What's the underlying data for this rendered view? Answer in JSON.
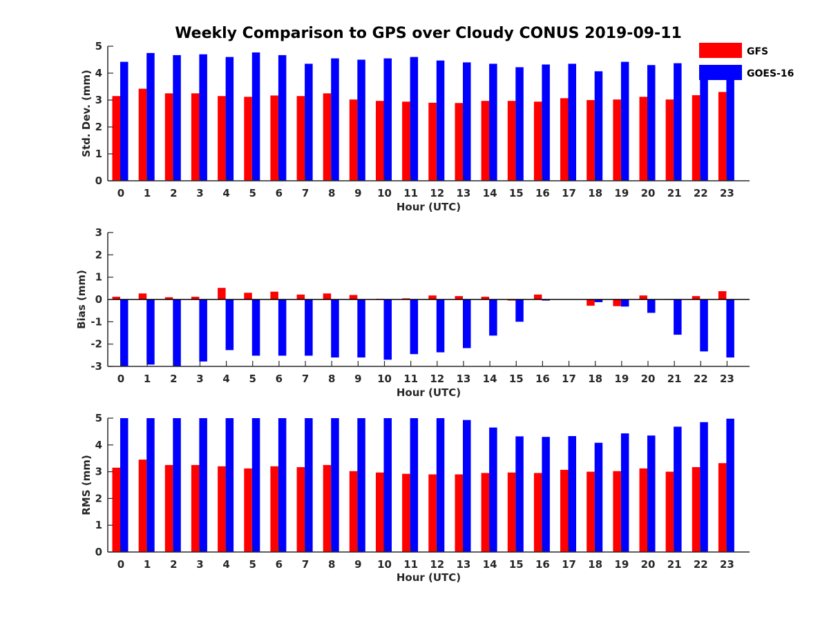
{
  "chart_data": {
    "title": "Weekly Comparison to GPS over Cloudy CONUS 2019-09-11",
    "type": "bar",
    "legend": {
      "placement": "top-right",
      "entries": [
        {
          "name": "GFS",
          "color": "#ff0000"
        },
        {
          "name": "GOES-16",
          "color": "#0000ff"
        }
      ]
    },
    "categories": [
      "0",
      "1",
      "2",
      "3",
      "4",
      "5",
      "6",
      "7",
      "8",
      "9",
      "10",
      "11",
      "12",
      "13",
      "14",
      "15",
      "16",
      "17",
      "18",
      "19",
      "20",
      "21",
      "22",
      "23"
    ],
    "panels": [
      {
        "xlabel": "Hour (UTC)",
        "ylabel": "Std. Dev. (mm)",
        "ylim": [
          0,
          5
        ],
        "yticks": [
          "0",
          "1",
          "2",
          "3",
          "4",
          "5"
        ],
        "series": [
          {
            "name": "GFS",
            "color": "#ff0000",
            "values": [
              3.15,
              3.42,
              3.25,
              3.25,
              3.15,
              3.12,
              3.17,
              3.15,
              3.25,
              3.02,
              2.97,
              2.94,
              2.9,
              2.89,
              2.97,
              2.97,
              2.94,
              3.07,
              3.0,
              3.02,
              3.12,
              3.02,
              3.18,
              3.3
            ]
          },
          {
            "name": "GOES-16",
            "color": "#0000ff",
            "values": [
              4.42,
              4.75,
              4.67,
              4.7,
              4.6,
              4.77,
              4.67,
              4.35,
              4.55,
              4.5,
              4.55,
              4.6,
              4.47,
              4.4,
              4.35,
              4.22,
              4.32,
              4.35,
              4.07,
              4.42,
              4.3,
              4.37,
              4.2,
              4.1
            ]
          }
        ]
      },
      {
        "xlabel": "Hour (UTC)",
        "ylabel": "Bias (mm)",
        "ylim": [
          -3,
          3
        ],
        "yticks": [
          "-3",
          "-2",
          "-1",
          "0",
          "1",
          "2",
          "3"
        ],
        "series": [
          {
            "name": "GFS",
            "color": "#ff0000",
            "values": [
              0.12,
              0.27,
              0.1,
              0.12,
              0.52,
              0.3,
              0.35,
              0.22,
              0.27,
              0.2,
              0.03,
              0.05,
              0.18,
              0.15,
              0.12,
              -0.05,
              0.22,
              0.0,
              -0.28,
              -0.3,
              0.18,
              0.02,
              0.15,
              0.37
            ]
          },
          {
            "name": "GOES-16",
            "color": "#0000ff",
            "values": [
              -3.0,
              -2.92,
              -3.0,
              -2.78,
              -2.27,
              -2.52,
              -2.52,
              -2.52,
              -2.6,
              -2.6,
              -2.7,
              -2.45,
              -2.37,
              -2.18,
              -1.62,
              -1.0,
              -0.05,
              0.0,
              -0.12,
              -0.32,
              -0.6,
              -1.58,
              -2.33,
              -2.6
            ]
          }
        ]
      },
      {
        "xlabel": "Hour (UTC)",
        "ylabel": "RMS (mm)",
        "ylim": [
          0,
          5
        ],
        "yticks": [
          "0",
          "1",
          "2",
          "3",
          "4",
          "5"
        ],
        "series": [
          {
            "name": "GFS",
            "color": "#ff0000",
            "values": [
              3.15,
              3.45,
              3.25,
              3.25,
              3.2,
              3.12,
              3.2,
              3.17,
              3.25,
              3.02,
              2.97,
              2.92,
              2.9,
              2.9,
              2.95,
              2.97,
              2.95,
              3.07,
              3.0,
              3.02,
              3.12,
              3.0,
              3.17,
              3.32
            ]
          },
          {
            "name": "GOES-16",
            "color": "#0000ff",
            "values": [
              5.0,
              5.0,
              5.0,
              5.0,
              5.0,
              5.0,
              5.0,
              5.0,
              5.0,
              5.0,
              5.0,
              5.0,
              5.0,
              4.93,
              4.65,
              4.32,
              4.3,
              4.33,
              4.08,
              4.43,
              4.35,
              4.68,
              4.85,
              4.98
            ]
          }
        ]
      }
    ]
  }
}
